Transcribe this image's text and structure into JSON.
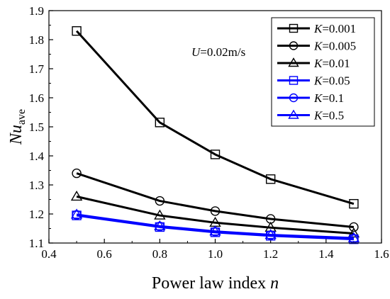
{
  "chart_data": {
    "type": "line",
    "title": "",
    "xlabel": {
      "text": "Power law index ",
      "var": "n"
    },
    "ylabel": {
      "var": "Nu",
      "sub": "ave"
    },
    "xlim": [
      0.4,
      1.6
    ],
    "ylim": [
      1.1,
      1.9
    ],
    "xticks": [
      "0.4",
      "0.6",
      "0.8",
      "1.0",
      "1.2",
      "1.4",
      "1.6"
    ],
    "yticks": [
      "1.1",
      "1.2",
      "1.3",
      "1.4",
      "1.5",
      "1.6",
      "1.7",
      "1.8",
      "1.9"
    ],
    "grid": false,
    "legend_position": "top-right",
    "annotation": {
      "var": "U",
      "text": "=0.02m/s"
    },
    "x": [
      0.5,
      0.8,
      1.0,
      1.2,
      1.5
    ],
    "series": [
      {
        "name": "=0.001",
        "var": "K",
        "marker": "square",
        "color": "#000000",
        "values": [
          1.83,
          1.515,
          1.405,
          1.32,
          1.235
        ]
      },
      {
        "name": "=0.005",
        "var": "K",
        "marker": "circle",
        "color": "#000000",
        "values": [
          1.34,
          1.245,
          1.21,
          1.183,
          1.155
        ]
      },
      {
        "name": "=0.01",
        "var": "K",
        "marker": "triangle",
        "color": "#000000",
        "values": [
          1.26,
          1.195,
          1.17,
          1.153,
          1.133
        ]
      },
      {
        "name": "=0.05",
        "var": "K",
        "marker": "square",
        "color": "#0000ff",
        "values": [
          1.195,
          1.155,
          1.137,
          1.125,
          1.113
        ]
      },
      {
        "name": "=0.1",
        "var": "K",
        "marker": "circle",
        "color": "#0000ff",
        "values": [
          1.197,
          1.157,
          1.139,
          1.127,
          1.115
        ]
      },
      {
        "name": "=0.5",
        "var": "K",
        "marker": "triangle",
        "color": "#0000ff",
        "values": [
          1.198,
          1.158,
          1.14,
          1.128,
          1.117
        ]
      }
    ]
  }
}
